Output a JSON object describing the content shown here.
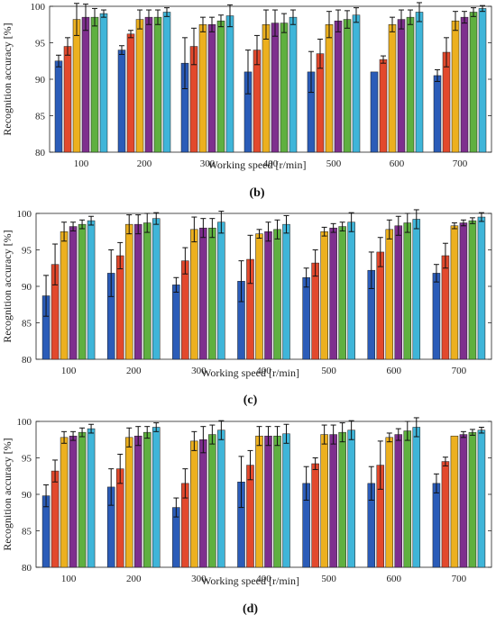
{
  "colors": [
    "#2b5cb8",
    "#e2492d",
    "#ecb01f",
    "#7e2f8e",
    "#5fb040",
    "#3fb5d9"
  ],
  "chart_data": [
    {
      "type": "bar",
      "panel_label": "(b)",
      "xlabel": "Working speed [r/min]",
      "ylabel": "Recognition accuracy [%]",
      "ylim": [
        80,
        100
      ],
      "yticks": [
        80,
        85,
        90,
        95,
        100
      ],
      "categories": [
        "100",
        "200",
        "300",
        "400",
        "500",
        "600",
        "700"
      ],
      "series": [
        {
          "values": [
            92.5,
            94.0,
            92.2,
            91.0,
            91.0,
            91.0,
            90.5
          ],
          "errors": [
            0.8,
            0.6,
            3.5,
            3.0,
            2.8,
            0.0,
            0.8
          ]
        },
        {
          "values": [
            94.5,
            96.2,
            94.5,
            94.0,
            93.5,
            92.7,
            93.7
          ],
          "errors": [
            1.2,
            0.5,
            2.5,
            2.0,
            2.0,
            0.5,
            2.0
          ]
        },
        {
          "values": [
            98.2,
            98.2,
            97.5,
            97.5,
            97.5,
            97.5,
            98.0
          ],
          "errors": [
            2.2,
            1.3,
            1.0,
            2.0,
            1.8,
            1.0,
            1.3
          ]
        },
        {
          "values": [
            98.5,
            98.5,
            97.5,
            97.7,
            98.0,
            98.2,
            98.5
          ],
          "errors": [
            1.8,
            1.0,
            1.0,
            1.8,
            1.5,
            1.3,
            0.8
          ]
        },
        {
          "values": [
            98.5,
            98.5,
            98.0,
            97.7,
            98.2,
            98.5,
            99.2
          ],
          "errors": [
            1.2,
            1.0,
            0.8,
            1.3,
            1.2,
            1.0,
            0.6
          ]
        },
        {
          "values": [
            99.0,
            99.2,
            98.7,
            98.5,
            98.8,
            99.2,
            99.7
          ],
          "errors": [
            0.5,
            0.6,
            1.5,
            1.0,
            1.0,
            1.3,
            0.4
          ]
        }
      ]
    },
    {
      "type": "bar",
      "panel_label": "(c)",
      "xlabel": "Working speed [r/min]",
      "ylabel": "Recognition accuracy [%]",
      "ylim": [
        80,
        100
      ],
      "yticks": [
        80,
        85,
        90,
        95,
        100
      ],
      "categories": [
        "100",
        "200",
        "300",
        "400",
        "500",
        "600",
        "700"
      ],
      "series": [
        {
          "values": [
            88.7,
            91.8,
            90.2,
            90.7,
            91.2,
            92.2,
            91.8
          ],
          "errors": [
            2.8,
            3.2,
            1.0,
            2.8,
            1.3,
            2.5,
            1.2
          ]
        },
        {
          "values": [
            93.0,
            94.2,
            93.5,
            93.7,
            93.2,
            94.7,
            94.2
          ],
          "errors": [
            2.8,
            1.8,
            1.8,
            3.3,
            1.8,
            2.0,
            1.7
          ]
        },
        {
          "values": [
            97.5,
            98.5,
            97.8,
            97.2,
            97.5,
            97.8,
            98.3
          ],
          "errors": [
            1.3,
            1.3,
            1.7,
            0.6,
            0.6,
            1.3,
            0.4
          ]
        },
        {
          "values": [
            98.2,
            98.5,
            98.0,
            97.5,
            98.0,
            98.3,
            98.7
          ],
          "errors": [
            0.6,
            1.3,
            1.3,
            1.3,
            0.6,
            1.3,
            0.4
          ]
        },
        {
          "values": [
            98.5,
            98.7,
            98.0,
            97.8,
            98.2,
            98.7,
            99.0
          ],
          "errors": [
            0.6,
            1.3,
            1.3,
            1.3,
            0.6,
            1.3,
            0.4
          ]
        },
        {
          "values": [
            99.0,
            99.3,
            98.8,
            98.5,
            98.8,
            99.2,
            99.5
          ],
          "errors": [
            0.6,
            0.8,
            1.5,
            1.2,
            1.3,
            1.3,
            0.6
          ]
        }
      ]
    },
    {
      "type": "bar",
      "panel_label": "(d)",
      "xlabel": "Working speed [r/min]",
      "ylabel": "Recognition accuracy [%]",
      "ylim": [
        80,
        100
      ],
      "yticks": [
        80,
        85,
        90,
        95,
        100
      ],
      "categories": [
        "100",
        "200",
        "300",
        "400",
        "500",
        "600",
        "700"
      ],
      "series": [
        {
          "values": [
            89.8,
            91.0,
            88.2,
            91.7,
            91.5,
            91.5,
            91.5
          ],
          "errors": [
            1.5,
            2.5,
            1.3,
            3.5,
            2.3,
            2.3,
            1.3
          ]
        },
        {
          "values": [
            93.2,
            93.5,
            91.5,
            94.0,
            94.2,
            94.0,
            94.5
          ],
          "errors": [
            1.5,
            2.0,
            2.0,
            2.0,
            0.8,
            3.3,
            0.6
          ]
        },
        {
          "values": [
            97.8,
            97.8,
            97.3,
            98.0,
            98.2,
            97.8,
            98.0
          ],
          "errors": [
            0.8,
            1.3,
            1.3,
            1.3,
            1.3,
            0.6,
            0.0
          ]
        },
        {
          "values": [
            98.0,
            98.0,
            97.5,
            98.0,
            98.2,
            98.2,
            98.2
          ],
          "errors": [
            0.6,
            1.3,
            1.8,
            1.3,
            1.3,
            0.8,
            0.4
          ]
        },
        {
          "values": [
            98.5,
            98.5,
            98.2,
            98.0,
            98.5,
            98.7,
            98.5
          ],
          "errors": [
            0.6,
            0.8,
            1.3,
            1.3,
            1.3,
            1.3,
            0.4
          ]
        },
        {
          "values": [
            99.0,
            99.2,
            98.8,
            98.3,
            98.8,
            99.2,
            98.8
          ],
          "errors": [
            0.6,
            0.6,
            1.3,
            1.3,
            1.3,
            1.3,
            0.4
          ]
        }
      ]
    }
  ]
}
